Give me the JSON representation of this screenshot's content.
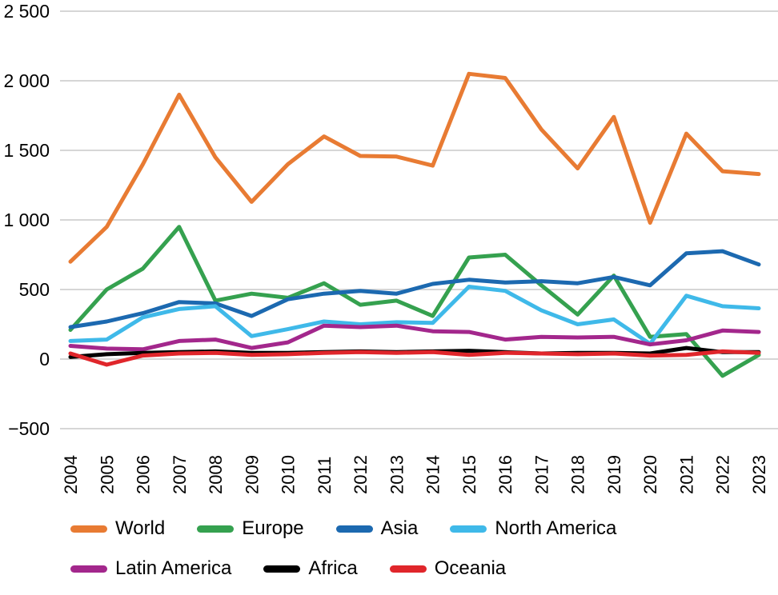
{
  "chart_data": {
    "type": "line",
    "title": "",
    "xlabel": "",
    "ylabel": "",
    "grid": true,
    "legend_position": "bottom",
    "ylim": [
      -500,
      2500
    ],
    "y_ticks": [
      {
        "value": 2500,
        "label": "2 500"
      },
      {
        "value": 2000,
        "label": "2 000"
      },
      {
        "value": 1500,
        "label": "1 500"
      },
      {
        "value": 1000,
        "label": "1 000"
      },
      {
        "value": 500,
        "label": "500"
      },
      {
        "value": 0,
        "label": "0"
      },
      {
        "value": -500,
        "label": "−500"
      }
    ],
    "x": [
      2004,
      2005,
      2006,
      2007,
      2008,
      2009,
      2010,
      2011,
      2012,
      2013,
      2014,
      2015,
      2016,
      2017,
      2018,
      2019,
      2020,
      2021,
      2022,
      2023
    ],
    "series": [
      {
        "name": "World",
        "color": "#E87B33",
        "values": [
          700,
          950,
          1400,
          1900,
          1450,
          1130,
          1400,
          1600,
          1460,
          1455,
          1390,
          2050,
          2020,
          1650,
          1370,
          1740,
          980,
          1620,
          1350,
          1330
        ]
      },
      {
        "name": "Europe",
        "color": "#35A14F",
        "values": [
          210,
          500,
          650,
          950,
          420,
          470,
          440,
          545,
          390,
          420,
          310,
          730,
          750,
          530,
          320,
          600,
          160,
          180,
          -120,
          30
        ]
      },
      {
        "name": "Asia",
        "color": "#1C69B0",
        "values": [
          230,
          270,
          330,
          410,
          400,
          310,
          430,
          470,
          490,
          470,
          540,
          570,
          550,
          560,
          545,
          590,
          530,
          760,
          775,
          680
        ]
      },
      {
        "name": "North America",
        "color": "#3FB9E9",
        "values": [
          130,
          140,
          300,
          360,
          380,
          165,
          215,
          270,
          250,
          265,
          260,
          520,
          490,
          350,
          250,
          285,
          110,
          455,
          380,
          365
        ]
      },
      {
        "name": "Latin America",
        "color": "#A3278C",
        "values": [
          95,
          75,
          70,
          130,
          140,
          80,
          120,
          240,
          230,
          240,
          200,
          195,
          140,
          160,
          155,
          160,
          105,
          135,
          205,
          195
        ]
      },
      {
        "name": "Africa",
        "color": "#000000",
        "values": [
          15,
          35,
          45,
          50,
          55,
          45,
          45,
          50,
          55,
          50,
          55,
          60,
          50,
          40,
          45,
          45,
          40,
          80,
          50,
          50
        ]
      },
      {
        "name": "Oceania",
        "color": "#E0262B",
        "values": [
          40,
          -40,
          25,
          40,
          45,
          30,
          35,
          45,
          50,
          45,
          50,
          30,
          45,
          40,
          35,
          40,
          25,
          30,
          55,
          45
        ]
      }
    ]
  },
  "legend_rows": [
    [
      "World",
      "Europe",
      "Asia",
      "North America"
    ],
    [
      "Latin America",
      "Africa",
      "Oceania"
    ]
  ]
}
